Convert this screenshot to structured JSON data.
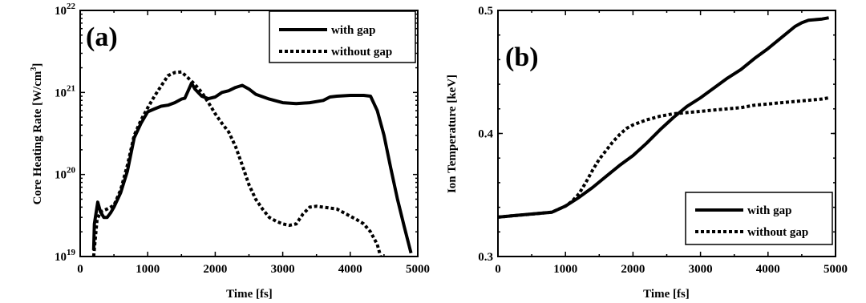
{
  "chart_data": [
    {
      "type": "line",
      "panel_label": "(a)",
      "xlabel": "Time [fs]",
      "ylabel": "Core Heating Rate [W/cm",
      "ylabel_sup": "3",
      "ylabel_end": "]",
      "xlim": [
        0,
        5000
      ],
      "ylim": [
        1e+19,
        1e+22
      ],
      "yscale": "log",
      "xticks": [
        0,
        1000,
        2000,
        3000,
        4000,
        5000
      ],
      "yticks": [
        {
          "value": 1e+19,
          "base": "10",
          "exp": "19"
        },
        {
          "value": 1e+20,
          "base": "10",
          "exp": "20"
        },
        {
          "value": 1e+21,
          "base": "10",
          "exp": "21"
        },
        {
          "value": 1e+22,
          "base": "10",
          "exp": "22"
        }
      ],
      "legend_position": "top-right",
      "series": [
        {
          "name": "with gap",
          "style": "solid",
          "x": [
            200,
            210,
            260,
            300,
            350,
            400,
            450,
            500,
            600,
            700,
            800,
            900,
            1000,
            1100,
            1200,
            1300,
            1400,
            1500,
            1550,
            1600,
            1650,
            1700,
            1800,
            1900,
            2000,
            2100,
            2200,
            2300,
            2400,
            2500,
            2600,
            2800,
            3000,
            3200,
            3400,
            3600,
            3700,
            3800,
            4000,
            4200,
            4300,
            4400,
            4500,
            4600,
            4700,
            4800,
            4900
          ],
          "y": [
            1.2e+19,
            2.5e+19,
            4.6e+19,
            3.5e+19,
            3e+19,
            3e+19,
            3.4e+19,
            4e+19,
            6e+19,
            1.1e+20,
            2.8e+20,
            4.2e+20,
            5.8e+20,
            6.3e+20,
            6.8e+20,
            7e+20,
            7.5e+20,
            8.3e+20,
            8.5e+20,
            1.05e+21,
            1.3e+21,
            1.1e+21,
            9e+20,
            8.4e+20,
            8.8e+20,
            1e+21,
            1.05e+21,
            1.15e+21,
            1.22e+21,
            1.1e+21,
            9.5e+20,
            8.3e+20,
            7.5e+20,
            7.3e+20,
            7.5e+20,
            8e+20,
            8.8e+20,
            9e+20,
            9.2e+20,
            9.2e+20,
            9e+20,
            6e+20,
            3e+20,
            1.2e+20,
            5e+19,
            2.3e+19,
            1.1e+19
          ]
        },
        {
          "name": "without gap",
          "style": "dotted",
          "x": [
            200,
            250,
            300,
            400,
            500,
            600,
            700,
            800,
            900,
            1000,
            1100,
            1200,
            1300,
            1400,
            1500,
            1600,
            1700,
            1800,
            1900,
            2000,
            2100,
            2200,
            2300,
            2400,
            2500,
            2600,
            2700,
            2800,
            2900,
            3000,
            3100,
            3200,
            3300,
            3400,
            3500,
            3600,
            3800,
            4000,
            4100,
            4200,
            4300,
            4400,
            4450
          ],
          "y": [
            1e+19,
            2.8e+19,
            3.5e+19,
            3.8e+19,
            4.2e+19,
            6.5e+19,
            1.3e+20,
            3e+20,
            4.6e+20,
            6.5e+20,
            9e+20,
            1.2e+21,
            1.6e+21,
            1.75e+21,
            1.78e+21,
            1.5e+21,
            1.25e+21,
            1e+21,
            7.5e+20,
            5.5e+20,
            4.2e+20,
            3.3e+20,
            2.2e+20,
            1.3e+20,
            7.5e+19,
            5e+19,
            3.8e+19,
            3e+19,
            2.7e+19,
            2.5e+19,
            2.4e+19,
            2.5e+19,
            3.3e+19,
            4e+19,
            4.1e+19,
            4e+19,
            3.8e+19,
            3.1e+19,
            2.8e+19,
            2.5e+19,
            2e+19,
            1.4e+19,
            1e+19
          ]
        }
      ]
    },
    {
      "type": "line",
      "panel_label": "(b)",
      "xlabel": "Time [fs]",
      "ylabel": "Ion Temperature [keV]",
      "xlim": [
        0,
        5000
      ],
      "ylim": [
        0.3,
        0.5
      ],
      "yscale": "linear",
      "xticks": [
        0,
        1000,
        2000,
        3000,
        4000,
        5000
      ],
      "yticks": [
        {
          "value": 0.3,
          "label": "0.3"
        },
        {
          "value": 0.4,
          "label": "0.4"
        },
        {
          "value": 0.5,
          "label": "0.5"
        }
      ],
      "legend_position": "bottom-right",
      "series": [
        {
          "name": "with gap",
          "style": "solid",
          "x": [
            0,
            200,
            400,
            600,
            800,
            1000,
            1200,
            1400,
            1600,
            1800,
            2000,
            2200,
            2400,
            2600,
            2800,
            3000,
            3200,
            3400,
            3600,
            3800,
            4000,
            4200,
            4400,
            4500,
            4600,
            4800,
            4900
          ],
          "y": [
            0.332,
            0.333,
            0.334,
            0.335,
            0.336,
            0.341,
            0.348,
            0.356,
            0.365,
            0.374,
            0.382,
            0.392,
            0.403,
            0.413,
            0.422,
            0.429,
            0.437,
            0.445,
            0.452,
            0.461,
            0.469,
            0.478,
            0.487,
            0.49,
            0.492,
            0.493,
            0.494
          ]
        },
        {
          "name": "without gap",
          "style": "dotted",
          "x": [
            0,
            200,
            400,
            600,
            800,
            1000,
            1100,
            1200,
            1300,
            1400,
            1500,
            1600,
            1700,
            1800,
            1900,
            2000,
            2200,
            2400,
            2600,
            2800,
            3000,
            3200,
            3400,
            3600,
            3800,
            4000,
            4200,
            4400,
            4600,
            4800,
            4900
          ],
          "y": [
            0.332,
            0.333,
            0.334,
            0.335,
            0.336,
            0.341,
            0.345,
            0.351,
            0.36,
            0.37,
            0.379,
            0.386,
            0.393,
            0.399,
            0.404,
            0.407,
            0.411,
            0.414,
            0.416,
            0.417,
            0.418,
            0.419,
            0.42,
            0.421,
            0.423,
            0.424,
            0.425,
            0.426,
            0.427,
            0.428,
            0.429
          ]
        }
      ]
    }
  ]
}
